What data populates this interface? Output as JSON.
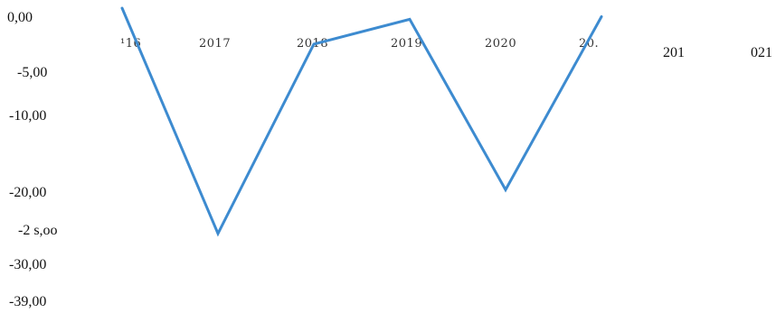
{
  "chart_data": {
    "type": "line",
    "title": "",
    "xlabel": "",
    "ylabel": "",
    "y_tick_labels": [
      "0,00",
      "-5,00",
      "-10,00",
      "-20,00",
      "-2 s,oo",
      "-30,00",
      "-39,00"
    ],
    "x_tick_labels": [
      "¹16",
      "2017",
      "2018",
      "2019",
      "2020",
      "20."
    ],
    "extra_labels": [
      "201",
      "021"
    ],
    "x": [
      2016,
      2017,
      2018,
      2019,
      2020,
      2021
    ],
    "series": [
      {
        "values": [
          1.0,
          -25.3,
          -3.2,
          -0.3,
          -20.2,
          0.0
        ],
        "color": "#3d8bd0"
      }
    ],
    "ylim": [
      -39,
      1
    ],
    "grid": false,
    "legend": "none"
  }
}
